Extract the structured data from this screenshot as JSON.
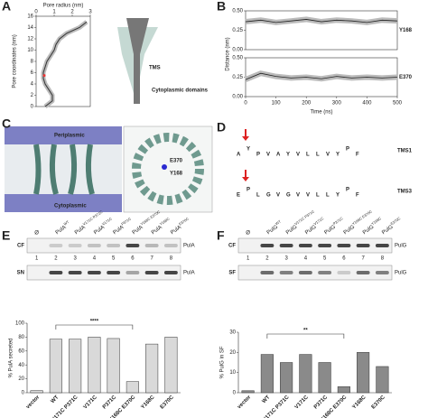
{
  "panels": {
    "A": {
      "letter": "A",
      "xlabel": "Pore radius (nm)",
      "ylabel": "Pore coordinates (nm)",
      "xlim": [
        0,
        3
      ],
      "xticks": [
        0,
        1,
        2,
        3
      ],
      "ylim": [
        0,
        16
      ],
      "yticks": [
        0,
        2,
        4,
        6,
        8,
        10,
        12,
        14,
        16
      ],
      "coordinates": [
        0,
        1,
        2,
        3,
        4,
        5,
        6,
        7,
        8,
        9,
        10,
        11,
        12,
        13,
        14,
        15
      ],
      "radius": [
        0.5,
        0.9,
        0.9,
        0.7,
        0.5,
        0.4,
        0.4,
        0.5,
        0.6,
        0.8,
        1.0,
        1.1,
        1.3,
        1.7,
        2.4,
        2.8
      ],
      "labels": {
        "tms": "TMS",
        "cyto": "Cytoplasmic domains"
      }
    },
    "B": {
      "letter": "B",
      "xlabel": "Time (ns)",
      "ylabel": "Distance (nm)",
      "xlim": [
        0,
        500
      ],
      "xticks": [
        0,
        100,
        200,
        300,
        400,
        500
      ],
      "ylim": [
        0,
        0.5
      ],
      "yticks": [
        {
          "value": 0,
          "label": "0.00"
        },
        {
          "value": 0.25,
          "label": "0.25"
        },
        {
          "value": 0.5,
          "label": "0.50"
        }
      ],
      "time": [
        0,
        50,
        100,
        150,
        200,
        250,
        300,
        350,
        400,
        450,
        500
      ],
      "series": [
        {
          "name": "Y168",
          "values": [
            0.36,
            0.38,
            0.35,
            0.37,
            0.39,
            0.36,
            0.38,
            0.37,
            0.35,
            0.38,
            0.37
          ]
        },
        {
          "name": "E370",
          "values": [
            0.22,
            0.3,
            0.26,
            0.24,
            0.25,
            0.23,
            0.26,
            0.24,
            0.25,
            0.24,
            0.25
          ]
        }
      ]
    },
    "C": {
      "letter": "C",
      "labels": {
        "peri": "Periplasmic",
        "cyto": "Cytoplasmic",
        "e370": "E370",
        "y168": "Y168"
      }
    },
    "D": {
      "letter": "D",
      "logos": [
        {
          "name": "TMS1",
          "letters": [
            "A",
            "Y",
            "P",
            "V",
            "A",
            "Y",
            "V",
            "L",
            "L",
            "V",
            "Y",
            "P",
            "F"
          ]
        },
        {
          "name": "TMS3",
          "letters": [
            "E",
            "P",
            "L",
            "G",
            "V",
            "G",
            "V",
            "V",
            "L",
            "L",
            "Y",
            "P",
            "F"
          ]
        }
      ]
    },
    "E": {
      "letter": "E",
      "protein": "PulA",
      "null_lane": "Ø",
      "lane_sups": [
        "WT",
        "V171C P371C",
        "V171C",
        "P371C",
        "Y168C E370C",
        "Y168C",
        "E370C"
      ],
      "lane_numbers": [
        "1",
        "2",
        "3",
        "4",
        "5",
        "6",
        "7",
        "8"
      ],
      "blots": [
        "CF",
        "SN"
      ],
      "band_label": "PulA",
      "chart": {
        "ylabel": "% PulA secreted",
        "ylim": [
          0,
          100
        ],
        "yticks": [
          0,
          20,
          40,
          60,
          80,
          100
        ],
        "categories": [
          "vector",
          "WT",
          "V171C P371C",
          "V171C",
          "P371C",
          "Y168C E370C",
          "Y168C",
          "E370C"
        ],
        "values": [
          3,
          77,
          77,
          80,
          78,
          16,
          70,
          80
        ],
        "significance": "****"
      }
    },
    "F": {
      "letter": "F",
      "protein": "PulG",
      "null_lane": "Ø",
      "lane_sups": [
        "WT",
        "V171C P371C",
        "V171C",
        "P371C",
        "Y168C E370C",
        "Y168C",
        "E370C"
      ],
      "lane_numbers": [
        "1",
        "2",
        "3",
        "4",
        "5",
        "6",
        "7",
        "8"
      ],
      "blots": [
        "CF",
        "SF"
      ],
      "band_label": "PulG",
      "chart": {
        "ylabel": "% PulG in SF",
        "ylim": [
          0,
          30
        ],
        "yticks": [
          0,
          10,
          20,
          30
        ],
        "categories": [
          "vector",
          "WT",
          "V171C P371C",
          "V171C",
          "P371C",
          "Y168C E370C",
          "Y168C",
          "E370C"
        ],
        "values": [
          1,
          19,
          15,
          19,
          15,
          3,
          20,
          13
        ],
        "significance": "**"
      }
    }
  }
}
